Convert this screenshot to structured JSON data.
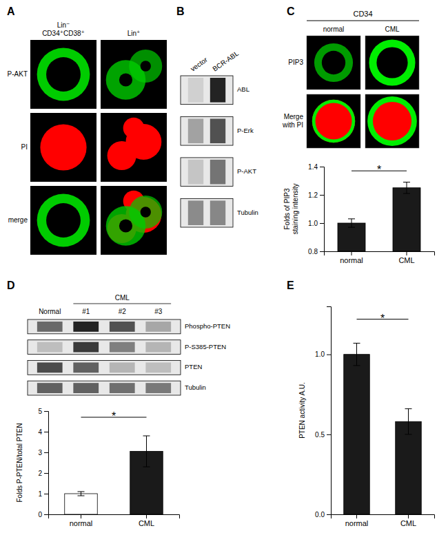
{
  "chart_data": [
    {
      "type": "image",
      "title": "A",
      "categories": [
        "P-AKT",
        "PI",
        "merge"
      ],
      "annotations": [
        "Lin⁻\nCD34⁺CD38⁺",
        "Lin⁺"
      ],
      "colors": [
        "#00cc00",
        "#ff0000"
      ]
    },
    {
      "type": "blot",
      "title": "B",
      "categories": [
        "ABL",
        "P-Erk",
        "P-AKT",
        "Tubulin"
      ],
      "series": [
        {
          "name": "vector",
          "values": [
            0.1,
            0.3,
            0.15,
            0.4
          ]
        },
        {
          "name": "BCR-ABL",
          "values": [
            0.85,
            0.65,
            0.5,
            0.42
          ]
        }
      ],
      "color": "#000000"
    },
    {
      "type": "image",
      "title": "C",
      "categories": [
        "PIP3",
        "Merge\nwith PI"
      ],
      "annotations": [
        "CD34",
        "normal",
        "CML"
      ],
      "colors": [
        "#00ee00",
        "#ff0000"
      ]
    },
    {
      "type": "bar",
      "categories": [
        "normal",
        "CML"
      ],
      "values": [
        1.0,
        1.25
      ],
      "errors": [
        0.03,
        0.04
      ],
      "colors": [
        "#1a1a1a",
        "#1a1a1a"
      ],
      "ylabel": "Folds of PIP3\nstaining intensity",
      "ylim": [
        0.8,
        1.4
      ],
      "yticks": [
        0.8,
        {
          "value": 1.0,
          "label": "1.0"
        },
        1.2,
        1.4
      ],
      "annotations": [
        {
          "text": "*",
          "y": 1.37,
          "x": [
            "normal",
            "CML"
          ]
        }
      ]
    },
    {
      "type": "blot",
      "title": "D",
      "categories": [
        "Phospho-PTEN",
        "P-S385-PTEN",
        "PTEN",
        "Tubulin"
      ],
      "series": [
        {
          "name": "Normal",
          "values": [
            0.55,
            0.18,
            0.68,
            0.58
          ]
        },
        {
          "name": "#1",
          "values": [
            0.85,
            0.75,
            0.58,
            0.58
          ]
        },
        {
          "name": "#2",
          "values": [
            0.65,
            0.45,
            0.22,
            0.52
          ]
        },
        {
          "name": "#3",
          "values": [
            0.28,
            0.22,
            0.18,
            0.48
          ]
        }
      ],
      "annotations": [
        "CML"
      ],
      "color": "#000000"
    },
    {
      "type": "bar",
      "categories": [
        "normal",
        "CML"
      ],
      "values": [
        1.0,
        3.05
      ],
      "errors": [
        0.1,
        0.75
      ],
      "colors": [
        "#ffffff",
        "#1a1a1a"
      ],
      "ylabel": "Folds P-PTEN/total PTEN",
      "ylim": [
        0,
        5
      ],
      "yticks": [
        0,
        1,
        2,
        3,
        4,
        5
      ],
      "annotations": [
        {
          "text": "*",
          "y": 4.7,
          "x": [
            "normal",
            "CML"
          ]
        }
      ]
    },
    {
      "type": "bar",
      "title": "E",
      "categories": [
        "normal",
        "CML"
      ],
      "values": [
        1.0,
        0.58
      ],
      "errors": [
        0.07,
        0.08
      ],
      "colors": [
        "#1a1a1a",
        "#1a1a1a"
      ],
      "ylabel": "PTEN activity A.U.",
      "ylim": [
        0,
        1.3
      ],
      "yticks": [
        {
          "value": 0.0,
          "label": "0.0"
        },
        0.5,
        {
          "value": 1.0,
          "label": "1.0"
        }
      ],
      "annotations": [
        {
          "text": "*",
          "y": 1.22,
          "x": [
            "normal",
            "CML"
          ]
        }
      ]
    }
  ]
}
